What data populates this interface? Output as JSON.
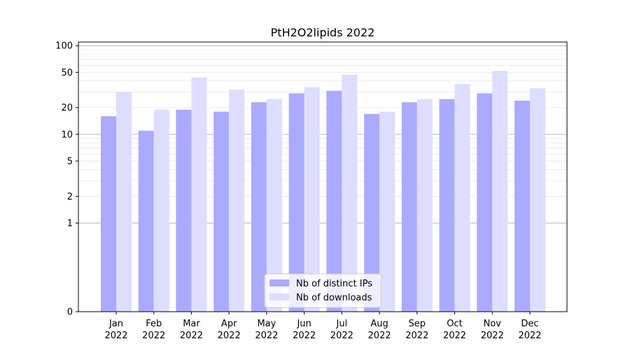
{
  "chart_data": {
    "type": "bar",
    "title": "PtH2O2lipids 2022",
    "xlabel": "",
    "ylabel": "",
    "yscale": "symlog",
    "ylim": [
      0,
      110
    ],
    "grid": true,
    "legend_position": "bottom-center",
    "categories": [
      [
        "Jan",
        "2022"
      ],
      [
        "Feb",
        "2022"
      ],
      [
        "Mar",
        "2022"
      ],
      [
        "Apr",
        "2022"
      ],
      [
        "May",
        "2022"
      ],
      [
        "Jun",
        "2022"
      ],
      [
        "Jul",
        "2022"
      ],
      [
        "Aug",
        "2022"
      ],
      [
        "Sep",
        "2022"
      ],
      [
        "Oct",
        "2022"
      ],
      [
        "Nov",
        "2022"
      ],
      [
        "Dec",
        "2022"
      ]
    ],
    "yticks": [
      {
        "value": 0,
        "label": "0"
      },
      {
        "value": 1,
        "label": "1"
      },
      {
        "value": 2,
        "label": "2"
      },
      {
        "value": 5,
        "label": "5"
      },
      {
        "value": 10,
        "label": "10"
      },
      {
        "value": 20,
        "label": "20"
      },
      {
        "value": 50,
        "label": "50"
      },
      {
        "value": 100,
        "label": "100"
      }
    ],
    "series": [
      {
        "name": "Nb of distinct IPs",
        "color": "#aaaaff",
        "values": [
          16,
          11,
          19,
          18,
          23,
          29,
          31,
          17,
          23,
          25,
          29,
          24
        ]
      },
      {
        "name": "Nb of downloads",
        "color": "#ddddff",
        "values": [
          30,
          19,
          44,
          32,
          25,
          34,
          47,
          18,
          25,
          37,
          52,
          33
        ]
      }
    ]
  }
}
